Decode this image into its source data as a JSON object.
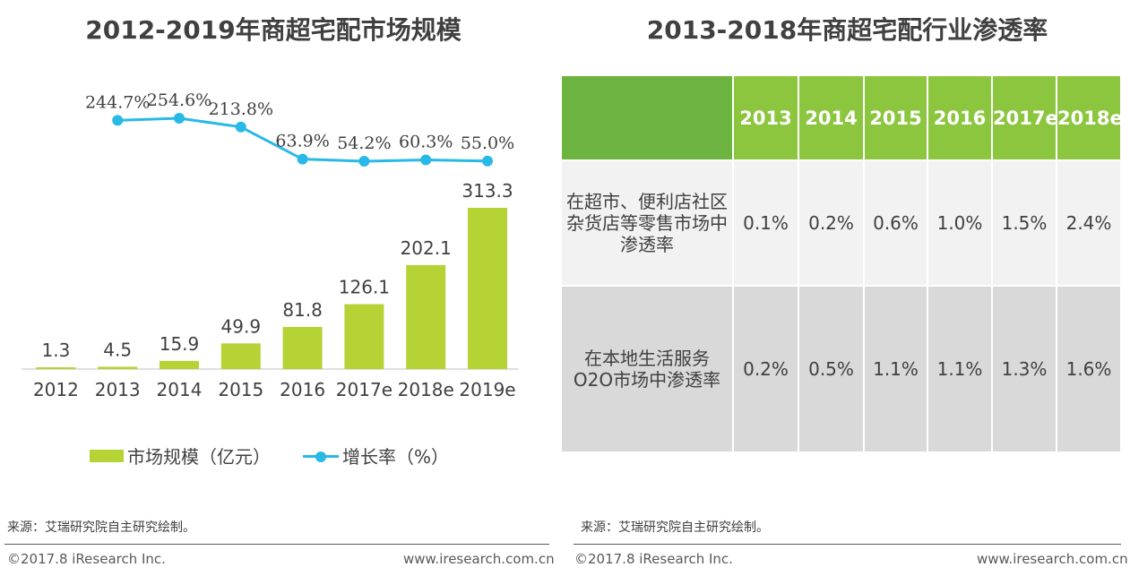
{
  "left": {
    "title": "2012-2019年商超宅配市场规模",
    "source": "来源：艾瑞研究院自主研究绘制。",
    "copyright": "©2017.8 iResearch Inc.",
    "website": "www.iresearch.com.cn"
  },
  "right": {
    "title": "2013-2018年商超宅配行业渗透率",
    "source": "来源：艾瑞研究院自主研究绘制。",
    "copyright": "©2017.8 iResearch Inc.",
    "website": "www.iresearch.com.cn"
  },
  "legend": {
    "bar_label": "市场规模（亿元）",
    "line_label": "增长率（%）"
  },
  "colors": {
    "bar": "#b5d334",
    "line": "#29b9e6",
    "table_header": "#8cc63f",
    "table_corner": "#6cb33f"
  },
  "chart_data": [
    {
      "type": "bar",
      "title": "2012-2019年商超宅配市场规模",
      "categories": [
        "2012",
        "2013",
        "2014",
        "2015",
        "2016",
        "2017e",
        "2018e",
        "2019e"
      ],
      "series": [
        {
          "name": "市场规模（亿元）",
          "type": "bar",
          "values": [
            1.3,
            4.5,
            15.9,
            49.9,
            81.8,
            126.1,
            202.1,
            313.3
          ],
          "labels": [
            "1.3",
            "4.5",
            "15.9",
            "49.9",
            "81.8",
            "126.1",
            "202.1",
            "313.3"
          ]
        },
        {
          "name": "增长率（%）",
          "type": "line",
          "values": [
            null,
            244.7,
            254.6,
            213.8,
            63.9,
            54.2,
            60.3,
            55.0
          ],
          "labels": [
            "",
            "244.7%",
            "254.6%",
            "213.8%",
            "63.9%",
            "54.2%",
            "60.3%",
            "55.0%"
          ]
        }
      ],
      "ylim_bar": [
        0,
        313.3
      ],
      "grid": false,
      "legend_position": "bottom"
    },
    {
      "type": "table",
      "title": "2013-2018年商超宅配行业渗透率",
      "columns": [
        "2013",
        "2014",
        "2015",
        "2016",
        "2017e",
        "2018e"
      ],
      "rows": [
        {
          "label": "在超市、便利店社区杂货店等零售市场中渗透率",
          "values": [
            "0.1%",
            "0.2%",
            "0.6%",
            "1.0%",
            "1.5%",
            "2.4%"
          ]
        },
        {
          "label": "在本地生活服务O2O市场中渗透率",
          "values": [
            "0.2%",
            "0.5%",
            "1.1%",
            "1.1%",
            "1.3%",
            "1.6%"
          ]
        }
      ]
    }
  ]
}
